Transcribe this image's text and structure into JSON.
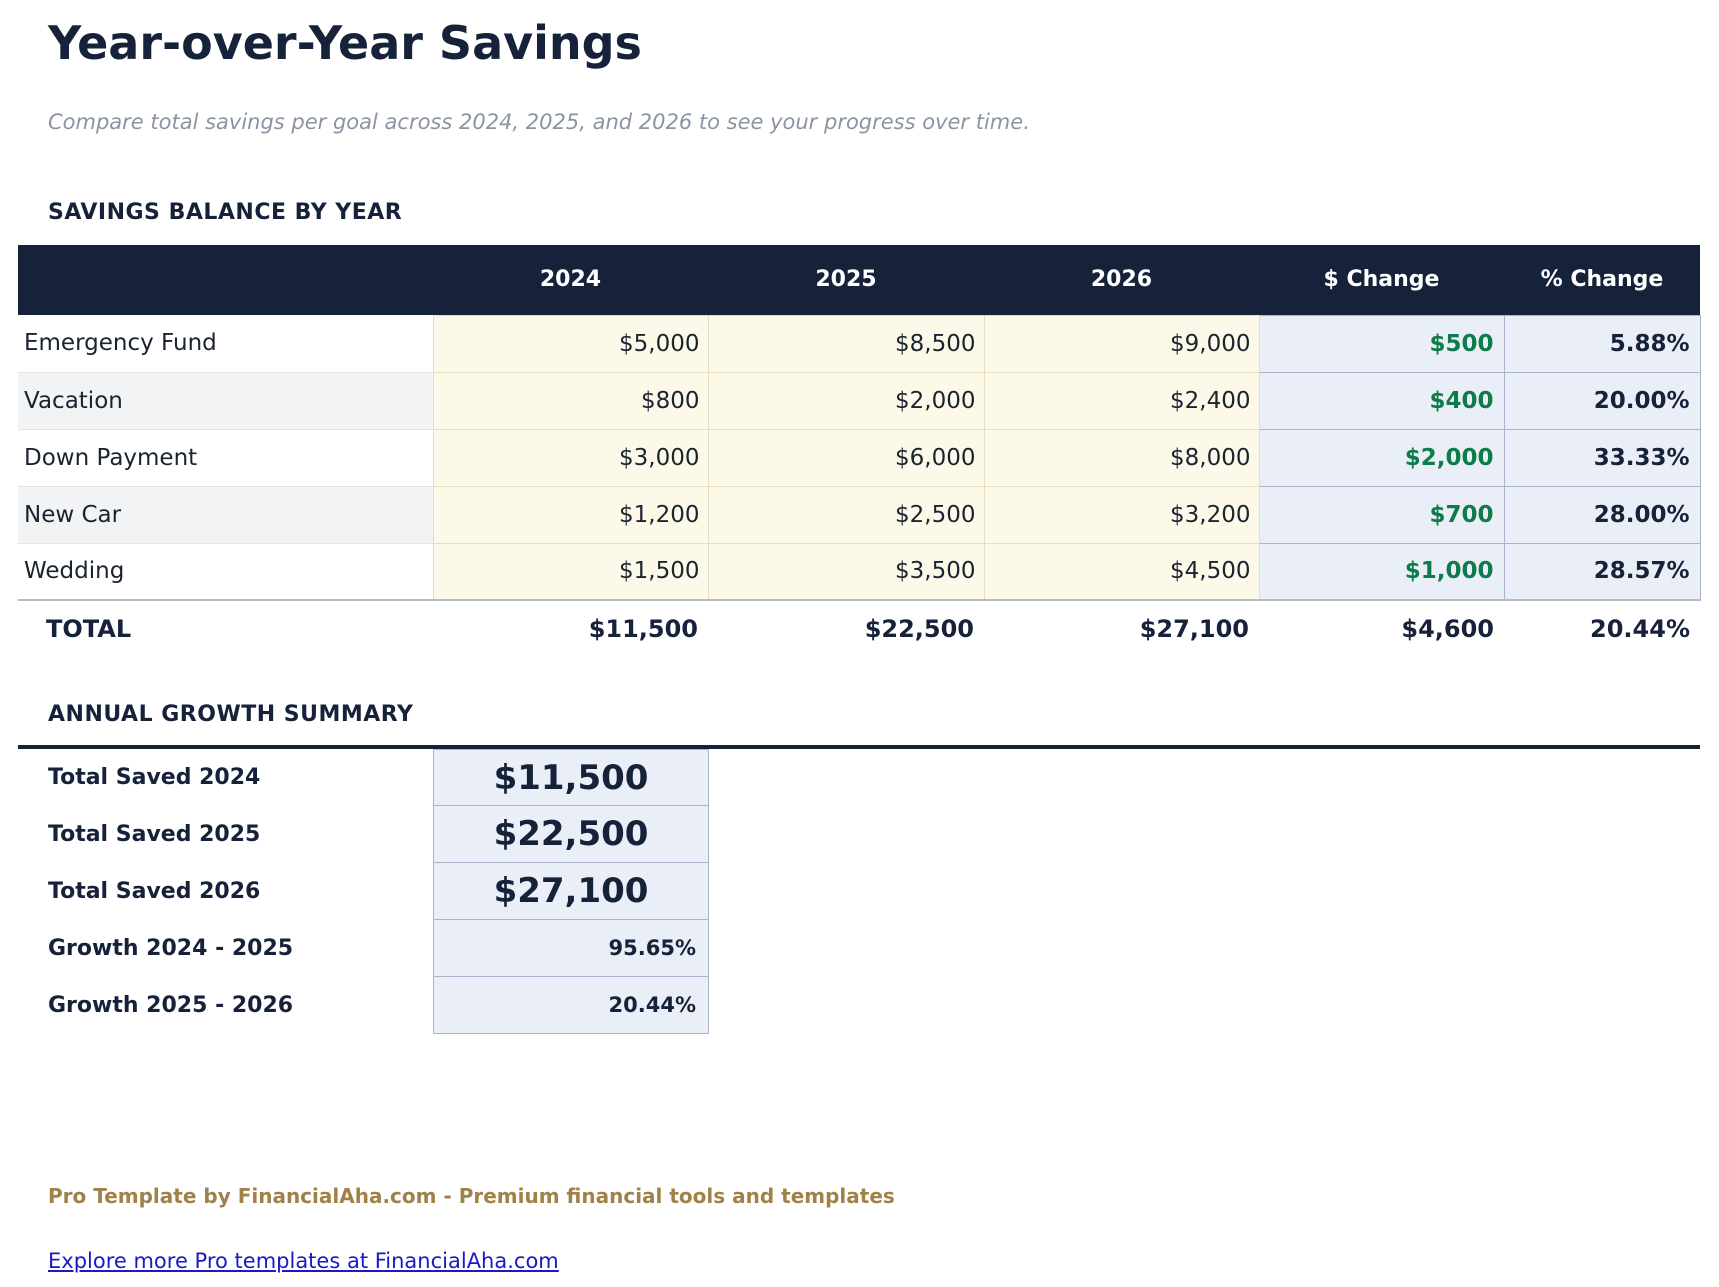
{
  "page": {
    "title": "Year-over-Year Savings",
    "subtitle": "Compare total savings per goal across 2024, 2025, and 2026 to see your progress over time."
  },
  "savings_table": {
    "heading": "SAVINGS BALANCE BY YEAR",
    "columns": [
      "",
      "2024",
      "2025",
      "2026",
      "$ Change",
      "% Change"
    ],
    "rows": [
      {
        "goal": "Emergency Fund",
        "y2024": "$5,000",
        "y2025": "$8,500",
        "y2026": "$9,000",
        "dollar_change": "$500",
        "pct_change": "5.88%"
      },
      {
        "goal": "Vacation",
        "y2024": "$800",
        "y2025": "$2,000",
        "y2026": "$2,400",
        "dollar_change": "$400",
        "pct_change": "20.00%"
      },
      {
        "goal": "Down Payment",
        "y2024": "$3,000",
        "y2025": "$6,000",
        "y2026": "$8,000",
        "dollar_change": "$2,000",
        "pct_change": "33.33%"
      },
      {
        "goal": "New Car",
        "y2024": "$1,200",
        "y2025": "$2,500",
        "y2026": "$3,200",
        "dollar_change": "$700",
        "pct_change": "28.00%"
      },
      {
        "goal": "Wedding",
        "y2024": "$1,500",
        "y2025": "$3,500",
        "y2026": "$4,500",
        "dollar_change": "$1,000",
        "pct_change": "28.57%"
      }
    ],
    "total": {
      "label": "TOTAL",
      "y2024": "$11,500",
      "y2025": "$22,500",
      "y2026": "$27,100",
      "dollar_change": "$4,600",
      "pct_change": "20.44%"
    }
  },
  "growth_summary": {
    "heading": "ANNUAL GROWTH SUMMARY",
    "rows": [
      {
        "label": "Total Saved 2024",
        "value": "$11,500",
        "style": "big"
      },
      {
        "label": "Total Saved 2025",
        "value": "$22,500",
        "style": "big"
      },
      {
        "label": "Total Saved 2026",
        "value": "$27,100",
        "style": "big"
      },
      {
        "label": "Growth 2024 - 2025",
        "value": "95.65%",
        "style": "pct"
      },
      {
        "label": "Growth 2025 - 2026",
        "value": "20.44%",
        "style": "pct"
      }
    ]
  },
  "footer": {
    "brand_line": "Pro Template by FinancialAha.com - Premium financial tools and templates",
    "link_text": "Explore more Pro templates at FinancialAha.com"
  },
  "colors": {
    "navy": "#16213a",
    "cream_bg": "#fdf9e8",
    "cream_border": "#e6ddbc",
    "bluegray_bg": "#eaeef7",
    "bluegray_border": "#a9b3c9",
    "positive_green": "#0e7c4a",
    "alt_row": "#f2f3f5",
    "subtitle_gray": "#8b94a3",
    "footer_gold": "#a08248",
    "link_blue": "#1c18c4"
  }
}
